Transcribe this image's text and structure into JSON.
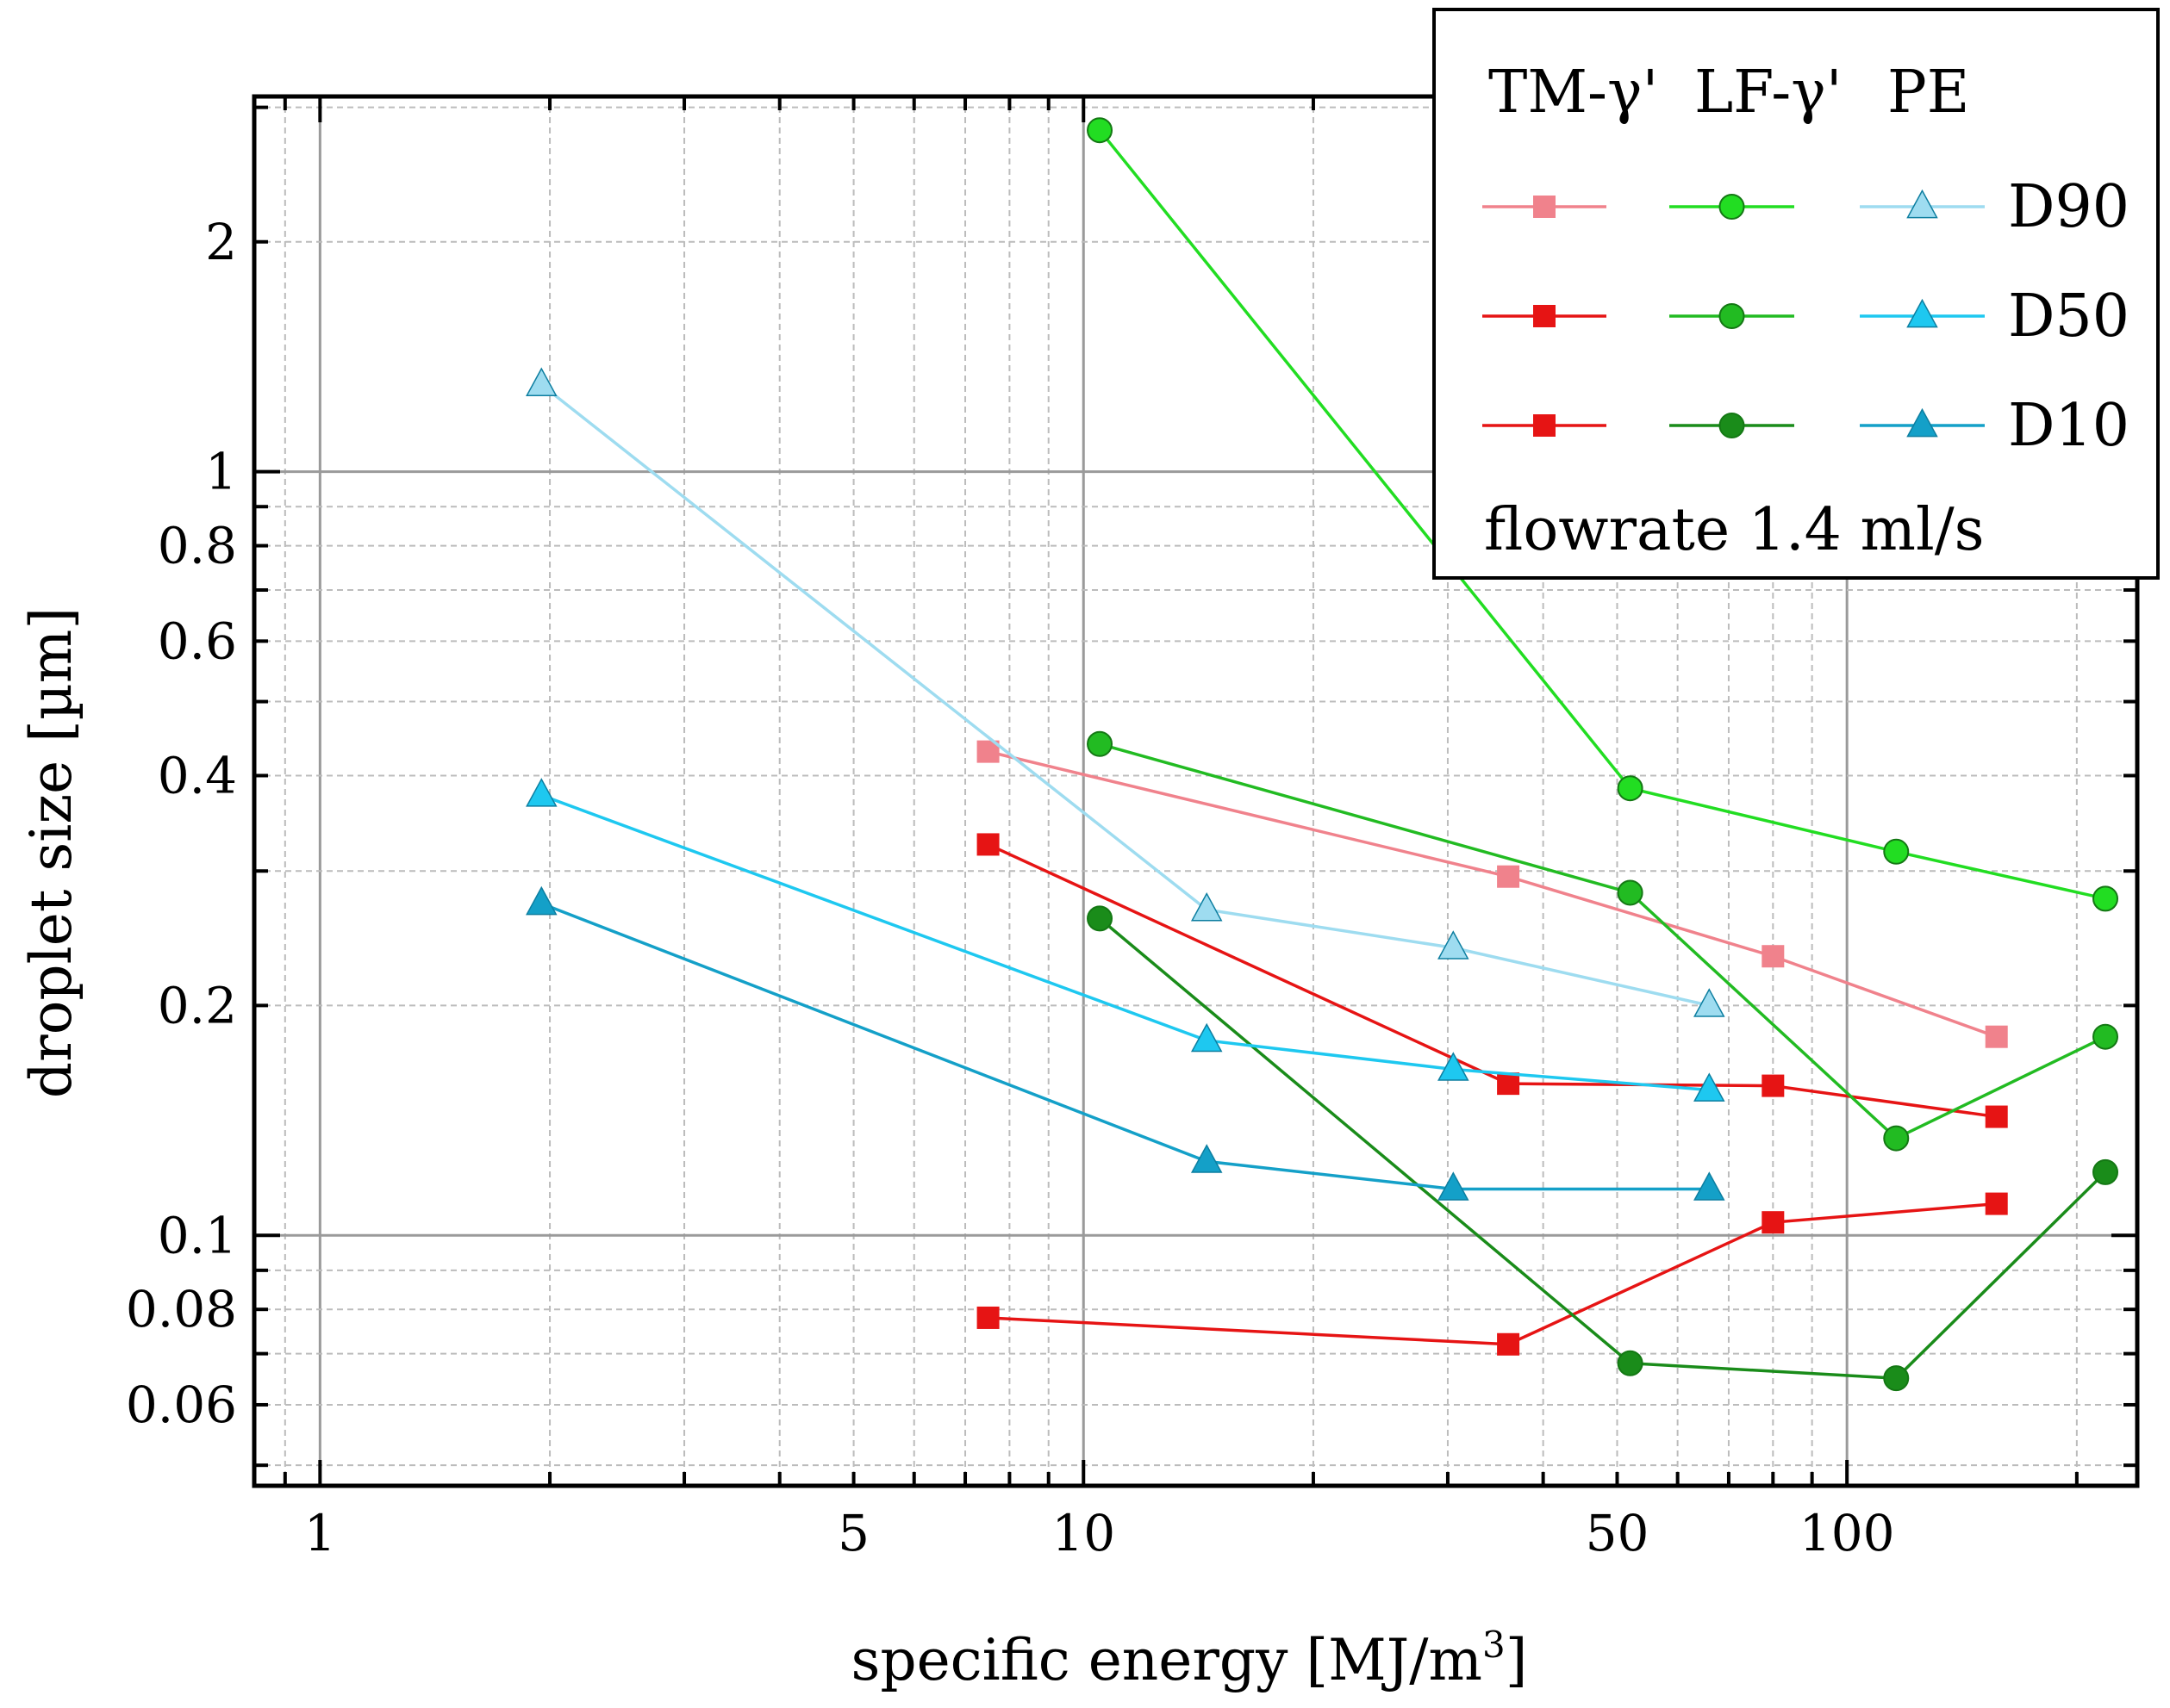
{
  "chart_data": {
    "type": "line",
    "title": "",
    "xlabel": "specific energy [MJ/m",
    "xlabel_sup": "3",
    "xlabel_end": "]",
    "ylabel": "droplet size [µm]",
    "x_scale": "log",
    "y_scale": "log",
    "xlim": [
      0.82,
      240
    ],
    "ylim": [
      0.047,
      3.1
    ],
    "x_tick_labels": [
      {
        "value": 1,
        "label": "1"
      },
      {
        "value": 5,
        "label": "5"
      },
      {
        "value": 10,
        "label": "10"
      },
      {
        "value": 50,
        "label": "50"
      },
      {
        "value": 100,
        "label": "100"
      }
    ],
    "y_tick_labels": [
      {
        "value": 0.06,
        "label": "0.06"
      },
      {
        "value": 0.08,
        "label": "0.08"
      },
      {
        "value": 0.1,
        "label": "0.1"
      },
      {
        "value": 0.2,
        "label": "0.2"
      },
      {
        "value": 0.4,
        "label": "0.4"
      },
      {
        "value": 0.6,
        "label": "0.6"
      },
      {
        "value": 0.8,
        "label": "0.8"
      },
      {
        "value": 1,
        "label": "1"
      },
      {
        "value": 2,
        "label": "2"
      }
    ],
    "grid": true,
    "legend_position": "top-right",
    "legend": {
      "headers": [
        "TM-γ'",
        "LF-γ'",
        "PE"
      ],
      "rows": [
        "D90",
        "D50",
        "D10"
      ],
      "note": "flowrate 1.4 ml/s"
    },
    "series": [
      {
        "group": "TM-γ'",
        "row": "D90",
        "marker": "square",
        "color": "#f0828c",
        "x": [
          7.5,
          36,
          80,
          157
        ],
        "y": [
          0.43,
          0.295,
          0.232,
          0.182
        ]
      },
      {
        "group": "TM-γ'",
        "row": "D50",
        "marker": "square",
        "color": "#e61414",
        "x": [
          7.5,
          36,
          80,
          157
        ],
        "y": [
          0.325,
          0.158,
          0.157,
          0.143
        ]
      },
      {
        "group": "TM-γ'",
        "row": "D10",
        "marker": "square",
        "color": "#e61414",
        "x": [
          7.5,
          36,
          80,
          157
        ],
        "y": [
          0.078,
          0.072,
          0.104,
          0.11
        ]
      },
      {
        "group": "LF-γ'",
        "row": "D90",
        "marker": "circle",
        "color": "#22dd22",
        "x": [
          10.5,
          52,
          116,
          218
        ],
        "y": [
          2.8,
          0.385,
          0.318,
          0.276
        ]
      },
      {
        "group": "LF-γ'",
        "row": "D50",
        "marker": "circle",
        "color": "#22bb22",
        "x": [
          10.5,
          52,
          116,
          218
        ],
        "y": [
          0.44,
          0.281,
          0.134,
          0.182
        ]
      },
      {
        "group": "LF-γ'",
        "row": "D10",
        "marker": "circle",
        "color": "#1a8c1a",
        "x": [
          10.5,
          52,
          116,
          218
        ],
        "y": [
          0.26,
          0.068,
          0.065,
          0.121
        ]
      },
      {
        "group": "PE",
        "row": "D90",
        "marker": "triangle",
        "color": "#9edcf0",
        "x": [
          1.95,
          14.5,
          30.5,
          66
        ],
        "y": [
          1.3,
          0.267,
          0.238,
          0.2
        ]
      },
      {
        "group": "PE",
        "row": "D50",
        "marker": "triangle",
        "color": "#1ec8f0",
        "x": [
          1.95,
          14.5,
          30.5,
          66
        ],
        "y": [
          0.377,
          0.18,
          0.165,
          0.155
        ]
      },
      {
        "group": "PE",
        "row": "D10",
        "marker": "triangle",
        "color": "#14a0c8",
        "x": [
          1.95,
          14.5,
          30.5,
          66
        ],
        "y": [
          0.272,
          0.125,
          0.115,
          0.115
        ]
      }
    ]
  }
}
